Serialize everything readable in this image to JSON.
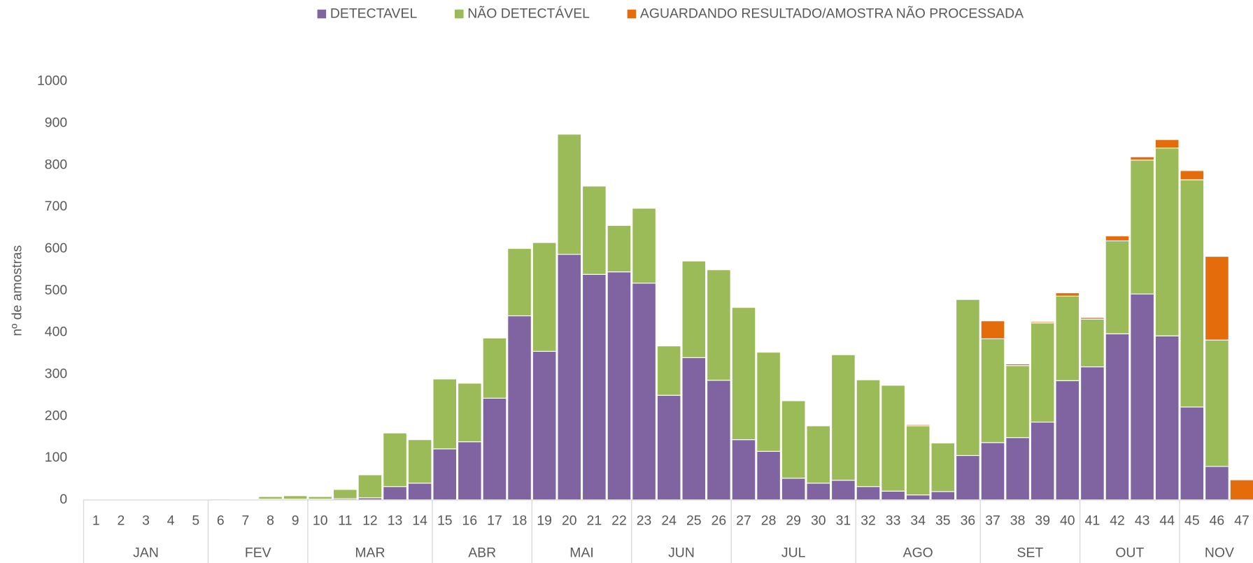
{
  "chart_data": {
    "type": "stacked_bar",
    "y_axis_label": "nº de amostras",
    "groups": [
      {
        "label": "JAN",
        "categories": [
          "1",
          "2",
          "3",
          "4",
          "5"
        ]
      },
      {
        "label": "FEV",
        "categories": [
          "6",
          "7",
          "8",
          "9"
        ]
      },
      {
        "label": "MAR",
        "categories": [
          "10",
          "11",
          "12",
          "13",
          "14"
        ]
      },
      {
        "label": "ABR",
        "categories": [
          "15",
          "16",
          "17",
          "18"
        ]
      },
      {
        "label": "MAI",
        "categories": [
          "19",
          "20",
          "21",
          "22"
        ]
      },
      {
        "label": "JUN",
        "categories": [
          "23",
          "24",
          "25",
          "26"
        ]
      },
      {
        "label": "JUL",
        "categories": [
          "27",
          "28",
          "29",
          "30",
          "31"
        ]
      },
      {
        "label": "AGO",
        "categories": [
          "32",
          "33",
          "34",
          "35",
          "36"
        ]
      },
      {
        "label": "SET",
        "categories": [
          "37",
          "38",
          "39",
          "40"
        ]
      },
      {
        "label": "OUT",
        "categories": [
          "41",
          "42",
          "43",
          "44"
        ]
      },
      {
        "label": "NOV",
        "categories": [
          "45",
          "46",
          "47"
        ]
      }
    ],
    "series": [
      {
        "name": "DETECTAVEL",
        "color": "#8064a2",
        "values": [
          0,
          0,
          0,
          0,
          0,
          0,
          0,
          2,
          2,
          2,
          3,
          5,
          32,
          40,
          122,
          139,
          243,
          440,
          355,
          587,
          539,
          545,
          518,
          250,
          340,
          286,
          144,
          116,
          52,
          40,
          47,
          32,
          21,
          12,
          20,
          106,
          137,
          149,
          186,
          285,
          318,
          397,
          492,
          392,
          222,
          80,
          0
        ]
      },
      {
        "name": "NÃO DETECTÁVEL",
        "color": "#9bbb59",
        "values": [
          0,
          0,
          0,
          0,
          0,
          2,
          1,
          6,
          8,
          6,
          22,
          55,
          128,
          104,
          167,
          140,
          144,
          161,
          260,
          287,
          211,
          111,
          179,
          118,
          231,
          264,
          316,
          237,
          185,
          137,
          300,
          255,
          253,
          165,
          116,
          373,
          248,
          172,
          237,
          202,
          114,
          222,
          320,
          449,
          543,
          302,
          0
        ]
      },
      {
        "name": "AGUARDANDO RESULTADO/AMOSTRA NÃO PROCESSADA",
        "color": "#e46c0a",
        "values": [
          0,
          0,
          0,
          0,
          0,
          0,
          0,
          0,
          0,
          0,
          0,
          0,
          0,
          0,
          0,
          0,
          0,
          0,
          0,
          0,
          0,
          0,
          0,
          0,
          0,
          0,
          0,
          0,
          0,
          0,
          0,
          0,
          0,
          3,
          0,
          0,
          43,
          4,
          3,
          8,
          4,
          12,
          8,
          20,
          22,
          200,
          48
        ]
      }
    ],
    "ylim": [
      0,
      1000
    ],
    "yticks": [
      0,
      100,
      200,
      300,
      400,
      500,
      600,
      700,
      800,
      900,
      1000
    ],
    "grid": false,
    "legend": "top"
  }
}
